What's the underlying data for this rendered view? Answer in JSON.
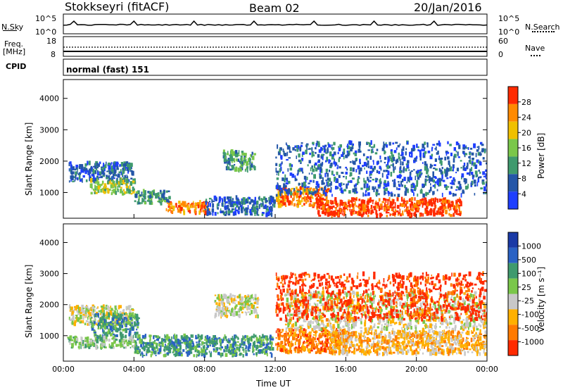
{
  "header": {
    "station": "Stokkseyri (fitACF)",
    "beam": "Beam 02",
    "date": "20/Jan/2016"
  },
  "noise_panel": {
    "left_label": "N.Sky",
    "right_label": "N.Search",
    "left_ticks": [
      "10^5",
      "10^0"
    ],
    "right_ticks": [
      "10^5",
      "10^0"
    ]
  },
  "freq_panel": {
    "left_label_line1": "Freq.",
    "left_label_line2": "[MHz]",
    "left_ticks": [
      "18",
      "8"
    ],
    "right_label": "Nave",
    "right_ticks": [
      "60",
      "0"
    ]
  },
  "cpid": {
    "label": "CPID",
    "value": "normal (fast) 151"
  },
  "chart_data": [
    {
      "type": "heatmap",
      "name": "power",
      "ylabel": "Slant Range [km]",
      "ylim": [
        180,
        4600
      ],
      "yticks": [
        "4000",
        "3000",
        "2000",
        "1000"
      ],
      "colorbar_label": "Power [dB]",
      "colorbar_ticks": [
        "28",
        "24",
        "20",
        "16",
        "12",
        "8",
        "4"
      ],
      "colors": [
        "#1f3fff",
        "#2456a8",
        "#3f9a6e",
        "#7ac74a",
        "#f0c000",
        "#ff8a00",
        "#ff2a00"
      ],
      "scatter_blobs": [
        {
          "t0": 0.3,
          "t1": 3.9,
          "r0": 1350,
          "r1": 1950,
          "class": 1
        },
        {
          "t0": 1.5,
          "t1": 4.0,
          "r0": 950,
          "r1": 1400,
          "class": 3
        },
        {
          "t0": 4.0,
          "t1": 6.0,
          "r0": 650,
          "r1": 1050,
          "class": 2
        },
        {
          "t0": 5.8,
          "t1": 8.2,
          "r0": 350,
          "r1": 700,
          "class": 5
        },
        {
          "t0": 8.0,
          "t1": 11.9,
          "r0": 280,
          "r1": 850,
          "class": 1
        },
        {
          "t0": 9.0,
          "t1": 10.8,
          "r0": 1700,
          "r1": 2300,
          "class": 2
        },
        {
          "t0": 12.0,
          "t1": 15.0,
          "r0": 550,
          "r1": 1150,
          "class": 5
        },
        {
          "t0": 14.3,
          "t1": 22.5,
          "r0": 250,
          "r1": 800,
          "class": 6
        },
        {
          "t0": 12.0,
          "t1": 24.0,
          "r0": 900,
          "r1": 2600,
          "class": 1
        }
      ]
    },
    {
      "type": "heatmap",
      "name": "velocity",
      "ylabel": "Slant Range [km]",
      "ylim": [
        180,
        4600
      ],
      "yticks": [
        "4000",
        "3000",
        "2000",
        "1000"
      ],
      "xlabel": "Time UT",
      "xticks": [
        "00:00",
        "04:00",
        "08:00",
        "12:00",
        "16:00",
        "20:00",
        "00:00"
      ],
      "colorbar_label": "Velocity [m s⁻¹]",
      "colorbar_ticks": [
        "1000",
        "500",
        "100",
        "25",
        "-25",
        "-100",
        "-500",
        "-1000"
      ],
      "colors": [
        "#1a3aa6",
        "#2a62c4",
        "#3f9a6e",
        "#7ac74a",
        "#c8c8c8",
        "#ffb000",
        "#ff7a00",
        "#ff2a00"
      ],
      "scatter_blobs": [
        {
          "t0": 0.3,
          "t1": 3.9,
          "r0": 1350,
          "r1": 1950,
          "class": 4
        },
        {
          "t0": 1.5,
          "t1": 4.2,
          "r0": 950,
          "r1": 1700,
          "class": 2
        },
        {
          "t0": 4.0,
          "t1": 11.8,
          "r0": 350,
          "r1": 1000,
          "class": 2
        },
        {
          "t0": 0.2,
          "t1": 4.0,
          "r0": 600,
          "r1": 950,
          "class": 3
        },
        {
          "t0": 8.5,
          "t1": 11.0,
          "r0": 1600,
          "r1": 2300,
          "class": 4
        },
        {
          "t0": 12.0,
          "t1": 16.0,
          "r0": 450,
          "r1": 1200,
          "class": 6
        },
        {
          "t0": 15.0,
          "t1": 24.0,
          "r0": 400,
          "r1": 1150,
          "class": 5
        },
        {
          "t0": 12.5,
          "t1": 24.0,
          "r0": 1200,
          "r1": 2400,
          "class": 4
        },
        {
          "t0": 12.0,
          "t1": 24.0,
          "r0": 1500,
          "r1": 3000,
          "class": 7
        }
      ]
    }
  ]
}
